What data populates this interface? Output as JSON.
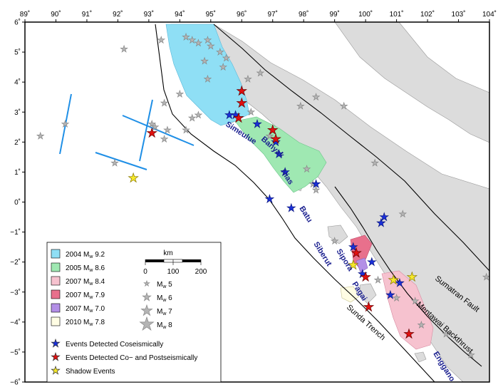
{
  "axes": {
    "lon_min": 89,
    "lon_max": 104,
    "lat_min": -6,
    "lat_max": 6,
    "lon_ticks": [
      "89˚",
      "90˚",
      "91˚",
      "92˚",
      "93˚",
      "94˚",
      "95˚",
      "96˚",
      "97˚",
      "98˚",
      "99˚",
      "100˚",
      "101˚",
      "102˚",
      "103˚",
      "104˚"
    ],
    "lat_ticks": [
      "6˚",
      "5˚",
      "4˚",
      "3˚",
      "2˚",
      "1˚",
      "0˚",
      "−1˚",
      "−2˚",
      "−3˚",
      "−4˚",
      "−5˚",
      "−6˚"
    ]
  },
  "colors": {
    "land": "#dcdcdc",
    "rupture_2004": "#8fdff5",
    "rupture_2005": "#9fe8b2",
    "rupture_2007_84": "#f6c2cf",
    "rupture_2007_79": "#e8708c",
    "rupture_2007_70": "#b38fe6",
    "rupture_2010": "#fffde4",
    "star_blue": "#1a2fd8",
    "star_red": "#e01010",
    "star_yellow": "#f5e82a",
    "star_gray": "#b4b4b4",
    "line_blue": "#1f8fe6"
  },
  "labels": {
    "islands": [
      "Simeulue",
      "Banyak",
      "Nias",
      "Batu",
      "Siberut",
      "Sipora",
      "Pagai",
      "Enggano"
    ],
    "faults": [
      "Sumatran Fault",
      "Mentawai Backthrust",
      "Sunda Trench"
    ]
  },
  "scale_bar": {
    "unit": "km",
    "ticks": [
      "0",
      "100",
      "200"
    ]
  },
  "legend": {
    "ruptures": [
      {
        "year": "2004",
        "mag": "9.2",
        "color": "#8fdff5"
      },
      {
        "year": "2005",
        "mag": "8.6",
        "color": "#9fe8b2"
      },
      {
        "year": "2007",
        "mag": "8.4",
        "color": "#f6c2cf"
      },
      {
        "year": "2007",
        "mag": "7.9",
        "color": "#e8708c"
      },
      {
        "year": "2007",
        "mag": "7.0",
        "color": "#b38fe6"
      },
      {
        "year": "2010",
        "mag": "7.8",
        "color": "#fffde4"
      }
    ],
    "magnitudes": [
      {
        "mag": "5",
        "size": 4
      },
      {
        "mag": "6",
        "size": 6
      },
      {
        "mag": "7",
        "size": 8
      },
      {
        "mag": "8",
        "size": 10
      }
    ],
    "event_types": [
      {
        "label": "Events Detected Coseismically",
        "color": "#1a2fd8"
      },
      {
        "label": "Events Detected Co− and Postseismically",
        "color": "#e01010"
      },
      {
        "label": "Shadow Events",
        "color": "#f5e82a"
      }
    ]
  },
  "events": {
    "blue": [
      [
        95.6,
        2.9
      ],
      [
        95.8,
        2.9
      ],
      [
        96.5,
        2.6
      ],
      [
        97.1,
        2.0
      ],
      [
        97.2,
        1.6
      ],
      [
        97.4,
        1.0
      ],
      [
        96.9,
        0.1
      ],
      [
        97.6,
        -0.2
      ],
      [
        98.4,
        0.6
      ],
      [
        99.6,
        -1.5
      ],
      [
        100.2,
        -2.0
      ],
      [
        99.9,
        -2.4
      ],
      [
        100.5,
        -0.7
      ],
      [
        100.6,
        -0.5
      ],
      [
        100.8,
        -3.1
      ],
      [
        101.1,
        -2.7
      ]
    ],
    "red": [
      [
        96.0,
        3.3
      ],
      [
        96.0,
        3.7
      ],
      [
        95.9,
        2.8
      ],
      [
        97.0,
        2.4
      ],
      [
        97.1,
        2.1
      ],
      [
        93.1,
        2.3
      ],
      [
        99.7,
        -1.7
      ],
      [
        100.0,
        -2.5
      ],
      [
        100.1,
        -3.5
      ],
      [
        101.4,
        -4.4
      ]
    ],
    "yellow": [
      [
        92.5,
        0.8
      ],
      [
        100.9,
        -2.6
      ],
      [
        101.5,
        -2.5
      ],
      [
        99.6,
        -2.1
      ]
    ],
    "gray": [
      [
        94.9,
        5.4
      ],
      [
        95.0,
        5.2
      ],
      [
        95.3,
        5.0
      ],
      [
        95.5,
        4.8
      ],
      [
        95.4,
        4.5
      ],
      [
        94.8,
        4.7
      ],
      [
        94.2,
        5.5
      ],
      [
        94.4,
        5.4
      ],
      [
        94.6,
        5.3
      ],
      [
        93.4,
        5.4
      ],
      [
        92.2,
        5.1
      ],
      [
        94.0,
        3.6
      ],
      [
        93.5,
        3.3
      ],
      [
        94.4,
        2.8
      ],
      [
        94.6,
        2.9
      ],
      [
        94.2,
        2.4
      ],
      [
        93.6,
        2.4
      ],
      [
        93.1,
        2.6
      ],
      [
        89.5,
        2.2
      ],
      [
        90.3,
        2.6
      ],
      [
        91.9,
        1.3
      ],
      [
        93.5,
        2.1
      ],
      [
        93.2,
        2.5
      ],
      [
        96.3,
        3.0
      ],
      [
        96.5,
        2.6
      ],
      [
        96.9,
        2.2
      ],
      [
        98.1,
        1.1
      ],
      [
        98.3,
        0.6
      ],
      [
        98.4,
        0.4
      ],
      [
        97.9,
        3.2
      ],
      [
        98.4,
        3.5
      ],
      [
        99.3,
        3.2
      ],
      [
        100.3,
        1.3
      ],
      [
        101.2,
        -0.4
      ],
      [
        101.0,
        -3.2
      ],
      [
        101.6,
        -3.3
      ],
      [
        101.8,
        -4.1
      ],
      [
        102.6,
        -4.4
      ],
      [
        103.4,
        -5.1
      ],
      [
        103.9,
        -2.5
      ],
      [
        100.4,
        -2.6
      ],
      [
        99.0,
        -1.3
      ],
      [
        96.2,
        4.1
      ],
      [
        96.6,
        4.3
      ],
      [
        94.9,
        4.1
      ]
    ]
  }
}
